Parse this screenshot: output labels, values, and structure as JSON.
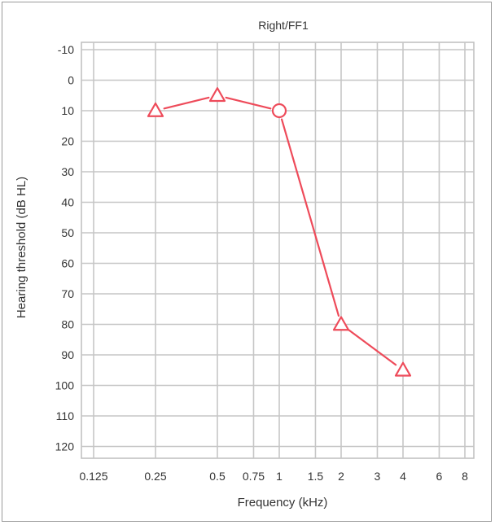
{
  "chart_data": {
    "type": "line",
    "title": "Right/FF1",
    "xlabel": "Frequency (kHz)",
    "ylabel": "Hearing threshold (dB HL)",
    "x_scale": "log",
    "y_inverted": true,
    "ylim": [
      -10,
      120
    ],
    "y_ticks": [
      "-10",
      "0",
      "10",
      "20",
      "30",
      "40",
      "50",
      "60",
      "70",
      "80",
      "90",
      "100",
      "110",
      "120"
    ],
    "x_ticks": [
      {
        "value": 0.125,
        "label": "0.125"
      },
      {
        "value": 0.25,
        "label": "0.25"
      },
      {
        "value": 0.5,
        "label": "0.5"
      },
      {
        "value": 0.75,
        "label": "0.75"
      },
      {
        "value": 1,
        "label": "1"
      },
      {
        "value": 1.5,
        "label": "1.5"
      },
      {
        "value": 2,
        "label": "2"
      },
      {
        "value": 3,
        "label": "3"
      },
      {
        "value": 4,
        "label": "4"
      },
      {
        "value": 6,
        "label": "6"
      },
      {
        "value": 8,
        "label": "8"
      }
    ],
    "grid": true,
    "series": [
      {
        "color": "#ee4b5a",
        "points": [
          {
            "x": 0.25,
            "y": 10,
            "marker": "triangle"
          },
          {
            "x": 0.5,
            "y": 5,
            "marker": "triangle"
          },
          {
            "x": 1,
            "y": 10,
            "marker": "circle"
          },
          {
            "x": 2,
            "y": 80,
            "marker": "triangle"
          },
          {
            "x": 4,
            "y": 95,
            "marker": "triangle"
          }
        ]
      }
    ]
  }
}
